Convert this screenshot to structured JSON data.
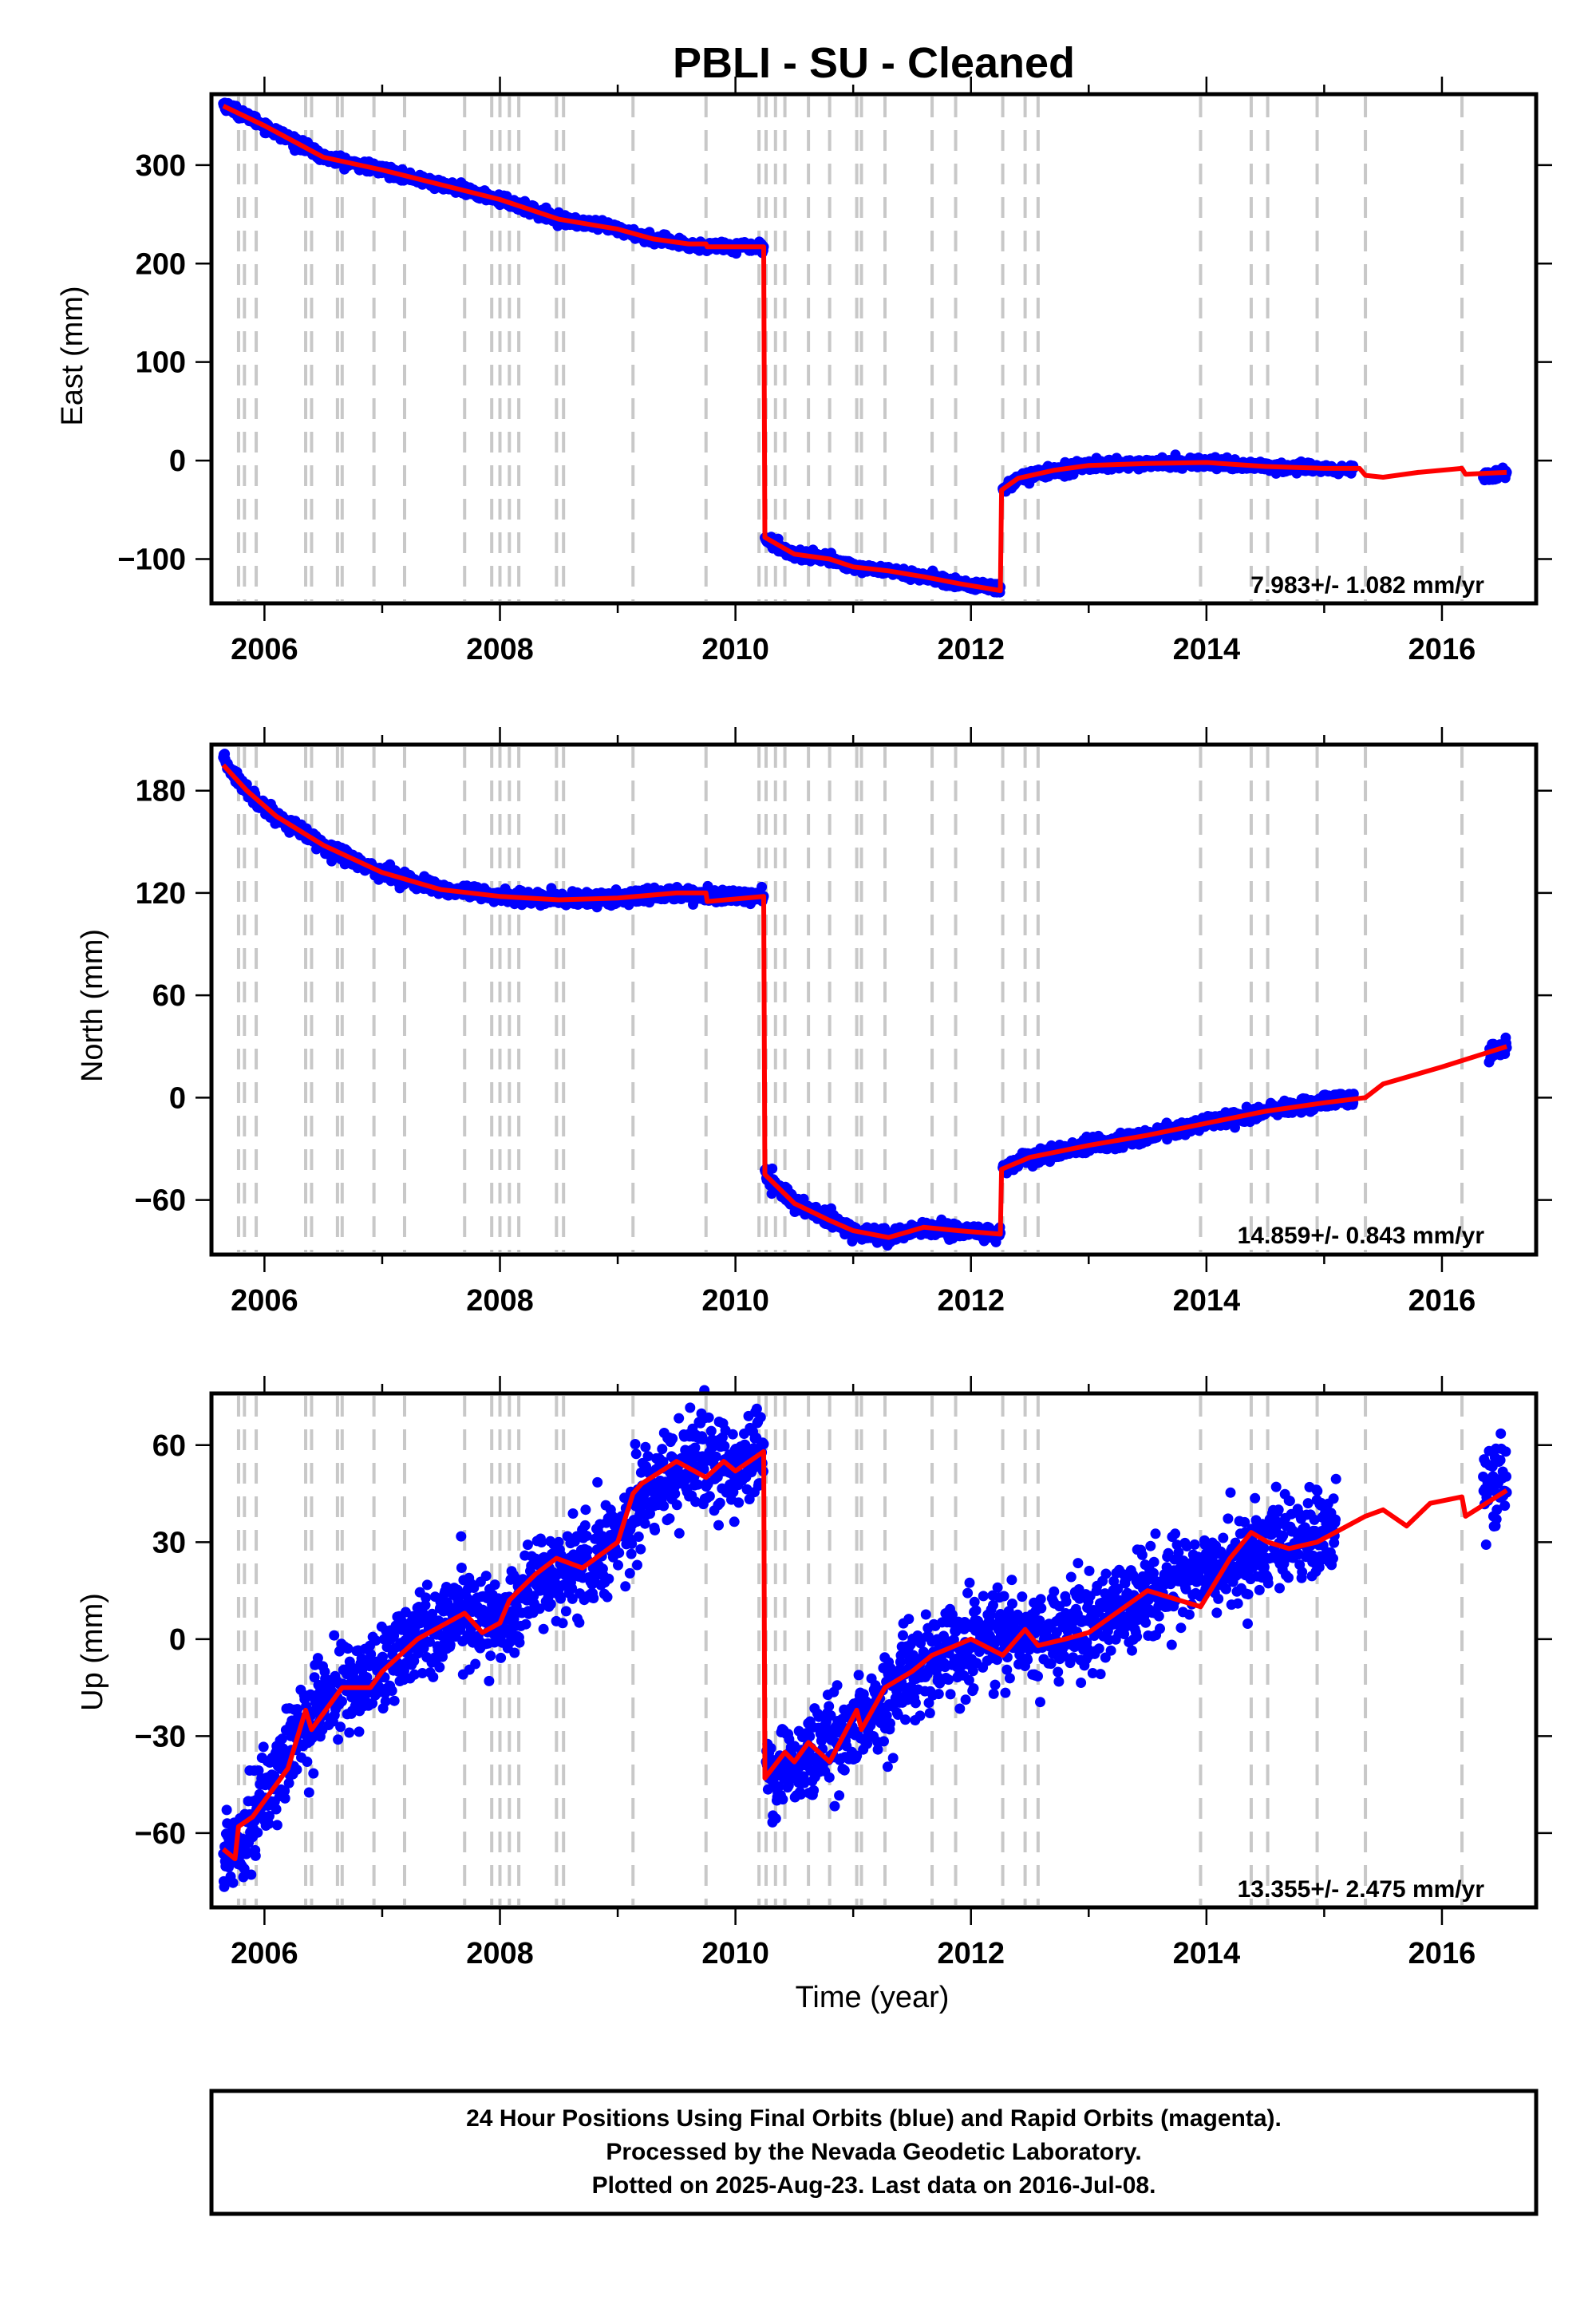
{
  "title": "PBLI  - SU - Cleaned",
  "footer": {
    "line1": "24 Hour Positions Using Final Orbits (blue) and Rapid Orbits (magenta).",
    "line2": "Processed by the Nevada Geodetic Laboratory.",
    "line3": "Plotted on 2025-Aug-23. Last data on 2016-Jul-08."
  },
  "colors": {
    "data": "#0000ff",
    "fit": "#ff0000",
    "events": "#c8c8c8",
    "axes": "#000000"
  },
  "events": [
    2005.78,
    2005.83,
    2005.93,
    2006.35,
    2006.4,
    2006.62,
    2006.66,
    2006.93,
    2007.19,
    2007.7,
    2007.93,
    2008.0,
    2008.08,
    2008.16,
    2008.48,
    2008.54,
    2009.13,
    2009.75,
    2010.2,
    2010.26,
    2010.34,
    2010.42,
    2010.62,
    2010.8,
    2011.03,
    2011.07,
    2011.27,
    2011.67,
    2011.87,
    2012.27,
    2012.46,
    2012.57,
    2013.95,
    2014.38,
    2014.52,
    2014.94,
    2015.35,
    2016.17
  ],
  "chart_data": [
    {
      "type": "scatter",
      "ylabel": "East (mm)",
      "xlabel": "",
      "xlim": [
        2005.55,
        2016.8
      ],
      "ylim": [
        -145,
        372
      ],
      "xticks": [
        2006,
        2008,
        2010,
        2012,
        2014,
        2016
      ],
      "yticks": [
        -100,
        0,
        100,
        200,
        300
      ],
      "ytick_labels": [
        "−100",
        "0",
        "100",
        "200",
        "300"
      ],
      "rate_label": "7.983+/- 1.082 mm/yr",
      "noise": 2.5,
      "series": [
        {
          "name": "data",
          "x": [
            2005.65,
            2006.0,
            2006.5,
            2007.0,
            2007.5,
            2008.0,
            2008.5,
            2009.0,
            2009.3,
            2009.6,
            2009.75,
            2010.24
          ],
          "y": [
            362,
            340,
            308,
            295,
            280,
            265,
            245,
            235,
            225,
            218,
            218,
            217
          ]
        },
        {
          "name": "data",
          "x": [
            2010.25,
            2010.5,
            2010.8,
            2011.0,
            2011.3,
            2011.6,
            2011.9,
            2012.25
          ],
          "y": [
            -80,
            -95,
            -100,
            -108,
            -112,
            -118,
            -125,
            -130
          ]
        },
        {
          "name": "data",
          "x": [
            2012.27,
            2012.4,
            2012.7,
            2013.0,
            2013.5,
            2014.0,
            2014.5,
            2015.0,
            2015.25
          ],
          "y": [
            -30,
            -18,
            -10,
            -5,
            -3,
            -2,
            -6,
            -8,
            -10
          ]
        },
        {
          "name": "data",
          "x": [
            2016.35,
            2016.55
          ],
          "y": [
            -15,
            -12
          ]
        }
      ],
      "fit": {
        "x": [
          2005.65,
          2006.0,
          2006.5,
          2007.0,
          2007.5,
          2008.0,
          2008.5,
          2009.0,
          2009.3,
          2009.6,
          2009.75,
          2009.76,
          2010.0,
          2010.24,
          2010.25,
          2010.5,
          2010.8,
          2011.0,
          2011.3,
          2011.6,
          2011.9,
          2012.25,
          2012.26,
          2012.4,
          2012.7,
          2013.0,
          2013.5,
          2014.0,
          2014.5,
          2015.0,
          2015.3,
          2015.35,
          2015.5,
          2015.8,
          2016.17,
          2016.2,
          2016.55
        ],
        "y": [
          360,
          340,
          308,
          295,
          280,
          265,
          245,
          235,
          225,
          220,
          220,
          217,
          217,
          217,
          -78,
          -95,
          -100,
          -108,
          -112,
          -118,
          -125,
          -132,
          -30,
          -18,
          -10,
          -5,
          -3,
          -2,
          -6,
          -8,
          -8,
          -15,
          -17,
          -12,
          -8,
          -14,
          -12
        ]
      }
    },
    {
      "type": "scatter",
      "ylabel": "North (mm)",
      "xlabel": "",
      "xlim": [
        2005.55,
        2016.8
      ],
      "ylim": [
        -92,
        207
      ],
      "xticks": [
        2006,
        2008,
        2010,
        2012,
        2014,
        2016
      ],
      "yticks": [
        -60,
        0,
        60,
        120,
        180
      ],
      "ytick_labels": [
        "−60",
        "0",
        "60",
        "120",
        "180"
      ],
      "rate_label": "14.859+/- 0.843 mm/yr",
      "noise": 2.0,
      "series": [
        {
          "name": "data",
          "x": [
            2005.65,
            2005.85,
            2006.1,
            2006.5,
            2007.0,
            2007.5,
            2008.0,
            2008.5,
            2009.0,
            2009.5,
            2009.75,
            2010.24
          ],
          "y": [
            198,
            180,
            165,
            148,
            132,
            122,
            118,
            116,
            117,
            120,
            118,
            118
          ]
        },
        {
          "name": "data",
          "x": [
            2010.25,
            2010.5,
            2010.8,
            2011.0,
            2011.3,
            2011.6,
            2011.9,
            2012.25
          ],
          "y": [
            -45,
            -62,
            -72,
            -78,
            -82,
            -76,
            -78,
            -80
          ]
        },
        {
          "name": "data",
          "x": [
            2012.27,
            2012.5,
            2013.0,
            2013.5,
            2014.0,
            2014.5,
            2015.0,
            2015.25
          ],
          "y": [
            -42,
            -35,
            -28,
            -22,
            -15,
            -8,
            -3,
            0
          ]
        },
        {
          "name": "data",
          "x": [
            2016.4,
            2016.55
          ],
          "y": [
            25,
            30
          ]
        }
      ],
      "fit": {
        "x": [
          2005.65,
          2005.85,
          2006.1,
          2006.5,
          2007.0,
          2007.5,
          2008.0,
          2008.5,
          2009.0,
          2009.5,
          2009.75,
          2009.76,
          2010.24,
          2010.25,
          2010.5,
          2010.8,
          2011.0,
          2011.3,
          2011.6,
          2011.9,
          2012.25,
          2012.26,
          2012.5,
          2013.0,
          2013.5,
          2014.0,
          2014.5,
          2015.0,
          2015.35,
          2015.5,
          2016.0,
          2016.55
        ],
        "y": [
          195,
          180,
          165,
          148,
          132,
          122,
          118,
          116,
          117,
          120,
          120,
          115,
          118,
          -45,
          -62,
          -72,
          -78,
          -82,
          -76,
          -78,
          -80,
          -42,
          -35,
          -28,
          -22,
          -15,
          -8,
          -3,
          0,
          8,
          18,
          30
        ]
      }
    },
    {
      "type": "scatter",
      "ylabel": "Up (mm)",
      "xlabel": "Time (year)",
      "xlim": [
        2005.55,
        2016.8
      ],
      "ylim": [
        -83,
        76
      ],
      "xticks": [
        2006,
        2008,
        2010,
        2012,
        2014,
        2016
      ],
      "yticks": [
        -60,
        -30,
        0,
        30,
        60
      ],
      "ytick_labels": [
        "−60",
        "−30",
        "0",
        "30",
        "60"
      ],
      "rate_label": "13.355+/- 2.475 mm/yr",
      "noise": 7,
      "series": [
        {
          "name": "data",
          "x": [
            2005.65,
            2005.9,
            2006.2,
            2006.5,
            2006.9,
            2007.3,
            2007.7,
            2008.0,
            2008.3,
            2008.7,
            2009.0,
            2009.3,
            2009.6,
            2010.0,
            2010.24
          ],
          "y": [
            -68,
            -55,
            -35,
            -18,
            -12,
            2,
            8,
            5,
            18,
            22,
            32,
            48,
            55,
            52,
            60
          ]
        },
        {
          "name": "data",
          "x": [
            2010.26,
            2010.6,
            2011.0,
            2011.4,
            2011.8,
            2012.2,
            2012.6,
            2013.0,
            2013.4,
            2013.8,
            2014.2,
            2014.6,
            2015.0,
            2015.1
          ],
          "y": [
            -42,
            -38,
            -28,
            -15,
            -5,
            2,
            0,
            5,
            12,
            18,
            22,
            30,
            33,
            33
          ]
        },
        {
          "name": "data",
          "x": [
            2016.35,
            2016.55
          ],
          "y": [
            45,
            48
          ]
        }
      ],
      "fit": {
        "x": [
          2005.65,
          2005.75,
          2005.78,
          2005.9,
          2006.2,
          2006.35,
          2006.4,
          2006.6,
          2006.66,
          2006.9,
          2007.0,
          2007.3,
          2007.7,
          2007.85,
          2008.0,
          2008.08,
          2008.16,
          2008.3,
          2008.48,
          2008.7,
          2009.0,
          2009.13,
          2009.2,
          2009.5,
          2009.75,
          2009.9,
          2010.0,
          2010.24,
          2010.25,
          2010.42,
          2010.5,
          2010.62,
          2010.8,
          2011.03,
          2011.07,
          2011.27,
          2011.5,
          2011.67,
          2011.87,
          2012.0,
          2012.27,
          2012.46,
          2012.57,
          2012.8,
          2013.0,
          2013.5,
          2013.95,
          2014.2,
          2014.38,
          2014.52,
          2014.7,
          2014.94,
          2015.35,
          2015.5,
          2015.7,
          2015.9,
          2016.17,
          2016.2,
          2016.55
        ],
        "y": [
          -65,
          -68,
          -58,
          -55,
          -40,
          -22,
          -28,
          -18,
          -15,
          -15,
          -10,
          0,
          8,
          2,
          5,
          12,
          15,
          20,
          25,
          22,
          30,
          45,
          48,
          55,
          50,
          55,
          52,
          58,
          -43,
          -35,
          -38,
          -32,
          -38,
          -22,
          -28,
          -15,
          -10,
          -5,
          -2,
          0,
          -5,
          3,
          -2,
          0,
          2,
          15,
          10,
          25,
          33,
          30,
          28,
          30,
          38,
          40,
          35,
          42,
          44,
          38,
          46
        ]
      }
    }
  ]
}
